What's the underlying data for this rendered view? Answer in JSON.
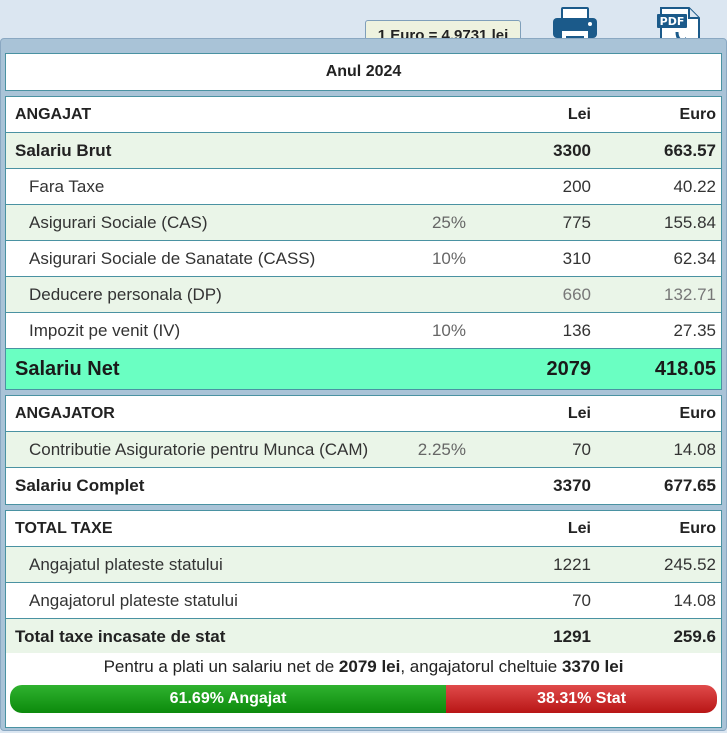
{
  "exchange_rate": "1 Euro = 4.9731 lei",
  "year_title": "Anul 2024",
  "employee": {
    "header": {
      "label": "ANGAJAT",
      "lei": "Lei",
      "euro": "Euro"
    },
    "gross": {
      "label": "Salariu Brut",
      "lei": "3300",
      "euro": "663.57"
    },
    "rows": [
      {
        "label": "Fara Taxe",
        "pct": "",
        "lei": "200",
        "euro": "40.22"
      },
      {
        "label": "Asigurari Sociale (CAS)",
        "pct": "25%",
        "lei": "775",
        "euro": "155.84"
      },
      {
        "label": "Asigurari Sociale de Sanatate (CASS)",
        "pct": "10%",
        "lei": "310",
        "euro": "62.34"
      },
      {
        "label": "Deducere personala (DP)",
        "pct": "",
        "lei": "660",
        "euro": "132.71"
      },
      {
        "label": "Impozit pe venit (IV)",
        "pct": "10%",
        "lei": "136",
        "euro": "27.35"
      }
    ],
    "net": {
      "label": "Salariu Net",
      "lei": "2079",
      "euro": "418.05"
    }
  },
  "employer": {
    "header": {
      "label": "ANGAJATOR",
      "lei": "Lei",
      "euro": "Euro"
    },
    "rows": [
      {
        "label": "Contributie Asiguratorie pentru Munca (CAM)",
        "pct": "2.25%",
        "lei": "70",
        "euro": "14.08"
      }
    ],
    "total": {
      "label": "Salariu Complet",
      "lei": "3370",
      "euro": "677.65"
    }
  },
  "taxes": {
    "header": {
      "label": "TOTAL TAXE",
      "lei": "Lei",
      "euro": "Euro"
    },
    "rows": [
      {
        "label": "Angajatul plateste statului",
        "lei": "1221",
        "euro": "245.52"
      },
      {
        "label": "Angajatorul plateste statului",
        "lei": "70",
        "euro": "14.08"
      }
    ],
    "total": {
      "label": "Total taxe incasate de stat",
      "lei": "1291",
      "euro": "259.6"
    }
  },
  "summary": {
    "prefix": "Pentru a plati un salariu net de ",
    "net_amount": "2079 lei",
    "middle": ", angajatorul cheltuie ",
    "total_amount": "3370 lei"
  },
  "split_bar": {
    "employee_label": "61.69% Angajat",
    "employee_fraction": 0.6169,
    "state_label": "38.31% Stat",
    "state_fraction": 0.3831,
    "employee_color": "#1a9c1a",
    "state_color": "#cc2a2a"
  },
  "icons": {
    "print": "printer-icon",
    "pdf": "pdf-download-icon"
  }
}
